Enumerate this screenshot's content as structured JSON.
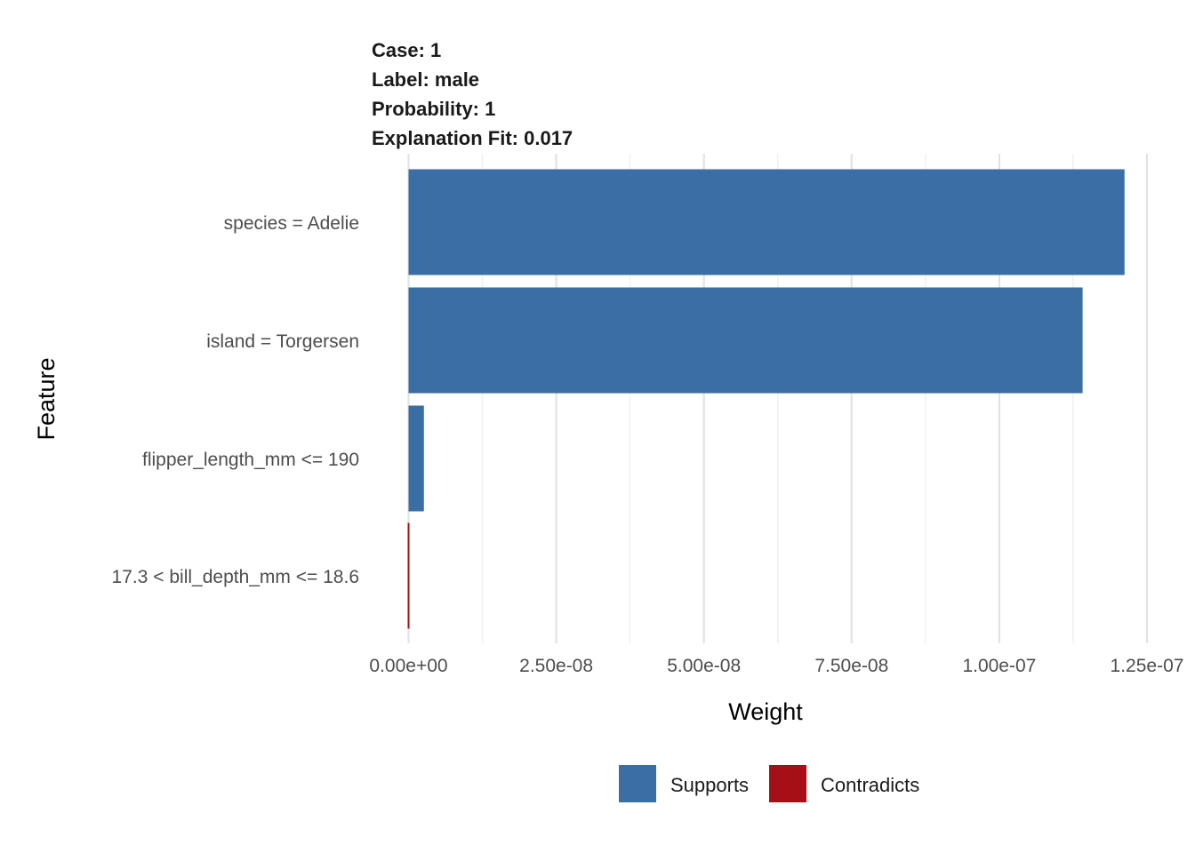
{
  "header": {
    "case": "Case: 1",
    "label": "Label: male",
    "probability": "Probability: 1",
    "fit": "Explanation Fit: 0.017"
  },
  "chart_data": {
    "type": "bar",
    "orientation": "horizontal",
    "xlabel": "Weight",
    "ylabel": "Feature",
    "xlim": [
      0,
      1.25e-07
    ],
    "x_ticks": [
      0,
      2.5e-08,
      5e-08,
      7.5e-08,
      1e-07,
      1.25e-07
    ],
    "x_tick_labels": [
      "0.00e+00",
      "2.50e-08",
      "5.00e-08",
      "7.50e-08",
      "1.00e-07",
      "1.25e-07"
    ],
    "categories": [
      "species = Adelie",
      "island = Torgersen",
      "flipper_length_mm <= 190",
      "17.3 < bill_depth_mm <= 18.6"
    ],
    "values": [
      1.212e-07,
      1.141e-07,
      2.6e-09,
      -2e-10
    ],
    "fill": [
      "Supports",
      "Supports",
      "Supports",
      "Contradicts"
    ],
    "grid": true,
    "legend_position": "bottom",
    "legend": [
      {
        "name": "Supports",
        "color": "#3a6ea5"
      },
      {
        "name": "Contradicts",
        "color": "#a50f15"
      }
    ]
  }
}
